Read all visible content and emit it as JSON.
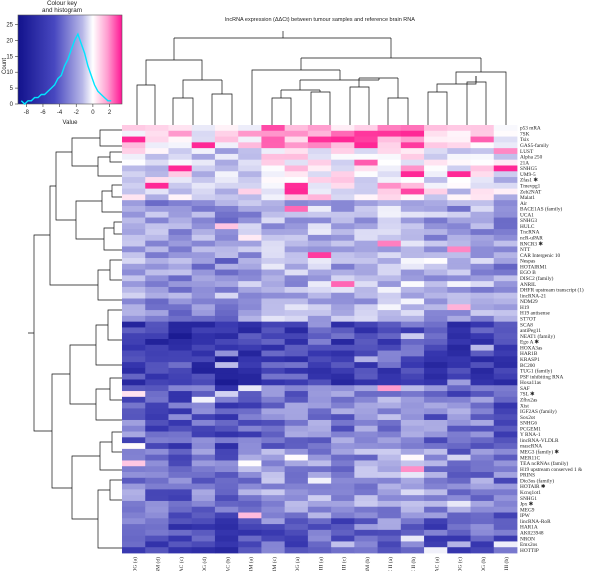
{
  "chart_data": {
    "type": "heatmap",
    "title": "lncRNA expression (ΔΔCt) between tumour samples and reference brain RNA",
    "color_key": {
      "title": "Colour key",
      "subtitle": "and histogram",
      "xlabel": "Value",
      "ylabel": "Count",
      "x_ticks": [
        "-8",
        "-6",
        "-4",
        "-2",
        "0",
        "2"
      ],
      "x_range": [
        -9,
        3.5
      ],
      "y_ticks": [
        "0",
        "5",
        "10",
        "15",
        "20",
        "25"
      ],
      "y_range": [
        0,
        28
      ],
      "colors": {
        "low": "#1a1a9e",
        "mid": "#ffffff",
        "high": "#ff1493"
      },
      "histogram_color": "#00e5ff",
      "hist_x": [
        -8.6,
        -8.2,
        -7.8,
        -7.4,
        -7.0,
        -6.6,
        -6.2,
        -5.8,
        -5.4,
        -5.0,
        -4.6,
        -4.2,
        -3.8,
        -3.4,
        -3.0,
        -2.6,
        -2.2,
        -1.8,
        -1.4,
        -1.0,
        -0.6,
        -0.2,
        0.2,
        0.6,
        1.0,
        1.4,
        1.8,
        2.2
      ],
      "hist_y": [
        1,
        0,
        1,
        1,
        2,
        2,
        3,
        3,
        4,
        5,
        6,
        8,
        9,
        12,
        14,
        17,
        20,
        22,
        19,
        16,
        12,
        9,
        6,
        4,
        3,
        2,
        1,
        1
      ]
    },
    "columns": [
      "ODG (a)",
      "Primary GBM (d)",
      "OAC (c)",
      "ODG (d)",
      "OAC (b)",
      "Primary GBM (a)",
      "Primary GBM (c)",
      "ODG (a)",
      "AC III (a)",
      "AC III (c)",
      "Primary GBM (b)",
      "AC II (a)",
      "AC II (b)",
      "OAC (a)",
      "ODG (c)",
      "ODG (b)",
      "AC III (b)"
    ],
    "rows": [
      "p53 mRA",
      "7SK",
      "Tsix",
      "GAS5-family",
      "LUST",
      "Alpha 250",
      "21A",
      "SNHG5",
      "UM9-5",
      "Zfas1 ✱",
      "Tmevpg1",
      "Zeb2NAT",
      "Malat1",
      "Air",
      "BACE1AS (family)",
      "UCA1",
      "SNHG3",
      "HULC",
      "TncRNA",
      "ncR-uPAR",
      "RNCR3 ✱",
      "NTT",
      "CAR Intergenic 10",
      "Nespas",
      "HOTAIRM1",
      "EGO B",
      "DISC2 (family)",
      "ANRIL",
      "DHFR upstream transcript (1)",
      "lincRNA-21",
      "NDM29",
      "H19",
      "H19 antisense",
      "ST7OT",
      "SCA8",
      "antiPeg11",
      "NEAT1 (family)",
      "Ego A ✱",
      "HOXA3as",
      "HAR1B",
      "KRASP1",
      "BC200",
      "TUG1 (family)",
      "PSF inhibiting RNA",
      "Hoxa11as",
      "SAF",
      "7SL ✱",
      "Zfhx2as",
      "Xist",
      "IGF2AS (family)",
      "Sox2ot",
      "SNHG6",
      "PCGEM1",
      "Y RNA-1",
      "lincRNA-VLDLR",
      "mascRNA",
      "MEG3 (family) ✱",
      "MER11C",
      "TEA ncRNAs (family)",
      "H19 upstream conserved 1 &",
      "PRINS",
      "Dio3os (family)",
      "HOTAIR ✱",
      "Kcnq1ot1",
      "SNHG1",
      "Jpx ✱",
      "MEG9",
      "IPW",
      "lincRNA-RoR",
      "HAR1A",
      "AK023948",
      "NRON",
      "Emx2os",
      "HOTTIP"
    ]
  }
}
